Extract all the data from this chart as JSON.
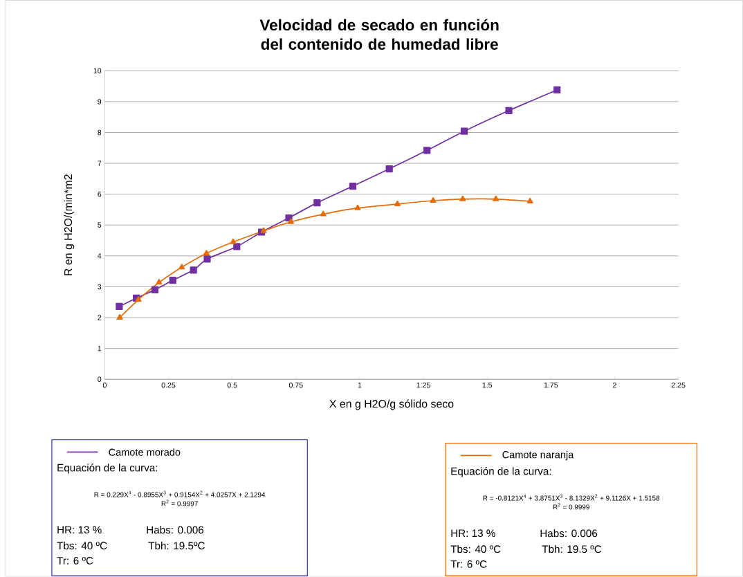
{
  "chart_data": {
    "type": "line",
    "title": "Velocidad de secado en función del contenido de humedad libre",
    "xlabel": "X en g H2O/g sólido seco",
    "ylabel": "R en g H2O/(min*m2",
    "xlim": [
      0,
      2.25
    ],
    "xticks": [
      0,
      0.25,
      0.5,
      0.75,
      1,
      1.25,
      1.5,
      1.75,
      2,
      2.25
    ],
    "ylim": [
      0,
      10
    ],
    "yticks": [
      0,
      1,
      2,
      3,
      4,
      5,
      6,
      7,
      8,
      9,
      10
    ],
    "grid": "y",
    "legend": "bottom",
    "series": [
      {
        "name": "Camote morado",
        "color": "#7030a0",
        "marker": "square",
        "x": [
          0.057,
          0.124,
          0.197,
          0.267,
          0.348,
          0.402,
          0.518,
          0.615,
          0.722,
          0.833,
          0.973,
          1.116,
          1.264,
          1.41,
          1.585,
          1.774
        ],
        "values": [
          2.36,
          2.63,
          2.9,
          3.21,
          3.54,
          3.9,
          4.3,
          4.77,
          5.23,
          5.72,
          6.26,
          6.82,
          7.42,
          8.04,
          8.71,
          9.38
        ]
      },
      {
        "name": "Camote naranja",
        "color": "#e36c09",
        "marker": "triangle",
        "x": [
          0.059,
          0.132,
          0.213,
          0.302,
          0.399,
          0.504,
          0.623,
          0.73,
          0.857,
          0.992,
          1.148,
          1.288,
          1.404,
          1.534,
          1.668
        ],
        "values": [
          2.0,
          2.58,
          3.14,
          3.63,
          4.08,
          4.45,
          4.81,
          5.1,
          5.35,
          5.55,
          5.68,
          5.79,
          5.84,
          5.84,
          5.77
        ]
      }
    ],
    "annotations": [
      "Equación de la curva:",
      "R = 0.229X$^{4}$ - 0.8955X$^{3}$ + 0.9154X$^{2}$ + 4.0257X + 2.1294",
      "R$^{2}$ = 0.9997",
      "HR:  13 %",
      "Habs: 0.006",
      "Tbs: 40 ºC",
      "Tbh: 19.5ºC",
      "Tr: 6 ºC",
      "Equación de la curva:",
      "R = -0.8121X$^{4}$ + 3.8751X$^{3}$ - 8.1329X$^{2}$ + 9.1126X + 1.5158",
      "R$^{2}$ = 0.9999",
      "HR:  13 %",
      "Habs: 0.006",
      "Tbs: 40 ºC",
      "Tbh: 19.5 ºC",
      "Tr: 6 ºC"
    ]
  }
}
